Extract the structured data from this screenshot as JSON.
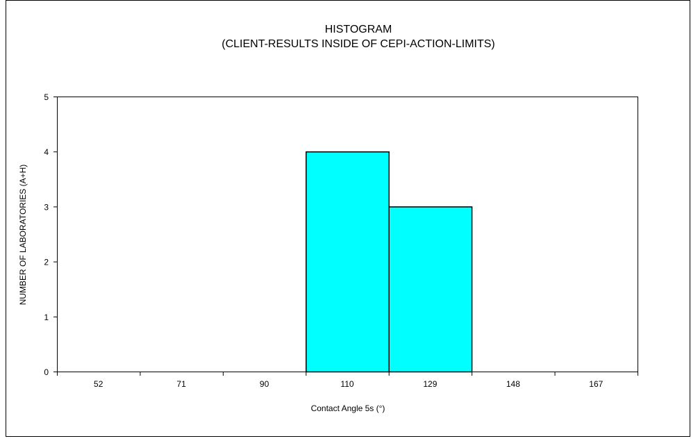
{
  "chart_data": {
    "type": "bar",
    "title": "HISTOGRAM",
    "subtitle": "(CLIENT-RESULTS INSIDE OF CEPI-ACTION-LIMITS)",
    "xlabel": "Contact Angle 5s (°)",
    "ylabel": "NUMBER OF LABORATORIES (A+H)",
    "categories": [
      "52",
      "71",
      "90",
      "110",
      "129",
      "148",
      "167"
    ],
    "values": [
      0,
      0,
      0,
      4,
      3,
      0,
      0
    ],
    "ylim": [
      0,
      5
    ],
    "yticks": [
      0,
      1,
      2,
      3,
      4,
      5
    ],
    "grid": false,
    "legend": "none",
    "bar_color": "#00FFFF",
    "bar_edge_color": "#000000"
  }
}
